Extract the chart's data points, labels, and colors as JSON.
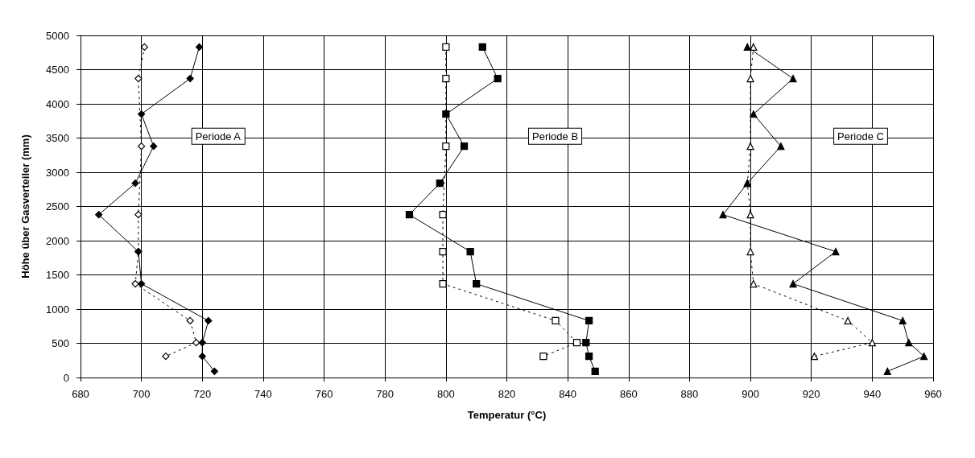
{
  "chart_data": {
    "type": "line",
    "xlabel": "Temperatur (°C)",
    "ylabel": "Höhe über Gasverteiler (mm)",
    "xlim": [
      680,
      960
    ],
    "xticks": [
      680,
      700,
      720,
      740,
      760,
      780,
      800,
      820,
      840,
      860,
      880,
      900,
      920,
      940,
      960
    ],
    "ylim": [
      0,
      5000
    ],
    "yticks": [
      0,
      500,
      1000,
      1500,
      2000,
      2500,
      3000,
      3500,
      4000,
      4500,
      5000
    ],
    "grid": true,
    "annotations": [
      "Periode A",
      "Periode B",
      "Periode C"
    ],
    "series": [
      {
        "color": "#000000",
        "marker": "diamond",
        "line_style": "solid",
        "x": [
          719,
          716,
          700,
          704,
          698,
          686,
          699,
          700,
          722,
          720,
          720,
          724
        ],
        "values": [
          4830,
          4370,
          3850,
          3380,
          2840,
          2380,
          1840,
          1370,
          830,
          510,
          310,
          90
        ]
      },
      {
        "color": "#000000",
        "marker": "diamond",
        "line_style": "dotted",
        "x": [
          701,
          699,
          700,
          699,
          699,
          698,
          716,
          718,
          708
        ],
        "values": [
          4830,
          4370,
          3380,
          2380,
          1840,
          1370,
          830,
          510,
          310
        ]
      },
      {
        "color": "#000000",
        "marker": "square",
        "line_style": "solid",
        "x": [
          812,
          817,
          800,
          806,
          798,
          788,
          808,
          810,
          847,
          846,
          847,
          849
        ],
        "values": [
          4830,
          4370,
          3850,
          3380,
          2840,
          2380,
          1840,
          1370,
          830,
          510,
          310,
          90
        ]
      },
      {
        "color": "#000000",
        "marker": "square",
        "line_style": "dotted",
        "x": [
          800,
          800,
          800,
          799,
          799,
          799,
          836,
          843,
          832
        ],
        "values": [
          4830,
          4370,
          3380,
          2380,
          1840,
          1370,
          830,
          510,
          310
        ]
      },
      {
        "color": "#000000",
        "marker": "triangle",
        "line_style": "solid",
        "x": [
          899,
          914,
          901,
          910,
          899,
          891,
          928,
          914,
          950,
          952,
          957,
          945
        ],
        "values": [
          4830,
          4370,
          3850,
          3380,
          2840,
          2380,
          1840,
          1370,
          830,
          510,
          310,
          90
        ]
      },
      {
        "color": "#000000",
        "marker": "triangle",
        "line_style": "dotted",
        "x": [
          901,
          900,
          900,
          899,
          900,
          900,
          901,
          932,
          940,
          921
        ],
        "values": [
          4830,
          4370,
          3380,
          2840,
          2380,
          1840,
          1370,
          830,
          510,
          310
        ]
      }
    ]
  }
}
